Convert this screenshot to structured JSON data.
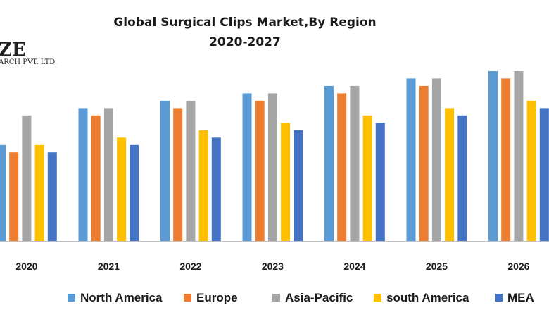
{
  "watermark": {
    "brand": "ZE",
    "subtitle": "ARCH PVT. LTD."
  },
  "chart_data": {
    "type": "bar",
    "title": "Global Surgical Clips Market,By Region",
    "subtitle": "2020-2027",
    "categories": [
      "2020",
      "2021",
      "2022",
      "2023",
      "2024",
      "2025",
      "2026"
    ],
    "series": [
      {
        "name": "North America",
        "color": "#5b9bd5",
        "values": [
          13,
          18,
          19,
          20,
          21,
          22,
          23
        ]
      },
      {
        "name": "Europe",
        "color": "#ed7d31",
        "values": [
          12,
          17,
          18,
          19,
          20,
          21,
          22
        ]
      },
      {
        "name": "Asia-Pacific",
        "color": "#a5a5a5",
        "values": [
          17,
          18,
          19,
          20,
          21,
          22,
          23
        ]
      },
      {
        "name": "south America",
        "color": "#ffc000",
        "values": [
          13,
          14,
          15,
          16,
          17,
          18,
          19
        ]
      },
      {
        "name": "MEA",
        "color": "#4472c4",
        "values": [
          12,
          13,
          14,
          15,
          16,
          17,
          18
        ]
      }
    ],
    "ylim": [
      0,
      25
    ],
    "grid": false,
    "legend": "bottom",
    "xlabel": "",
    "ylabel": ""
  }
}
